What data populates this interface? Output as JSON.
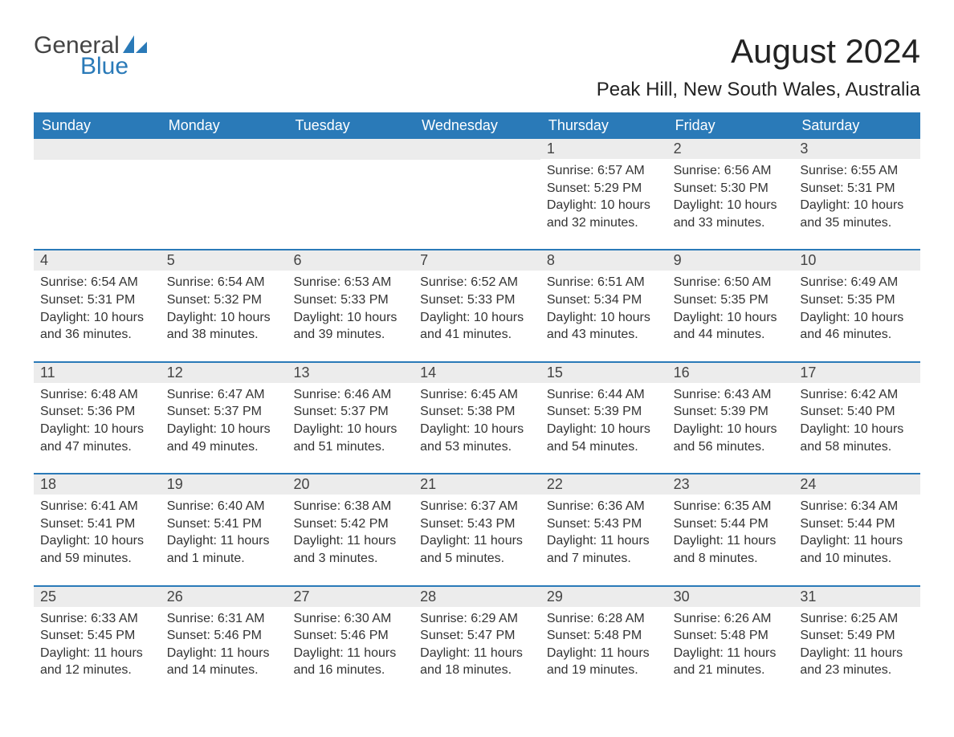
{
  "logo": {
    "text_general": "General",
    "text_blue": "Blue",
    "accent_color": "#2a7ab8"
  },
  "title": "August 2024",
  "location": "Peak Hill, New South Wales, Australia",
  "colors": {
    "header_bg": "#2a7ab8",
    "header_text": "#ffffff",
    "daynum_bg": "#ececec",
    "text": "#333333",
    "border": "#2a7ab8"
  },
  "day_names": [
    "Sunday",
    "Monday",
    "Tuesday",
    "Wednesday",
    "Thursday",
    "Friday",
    "Saturday"
  ],
  "weeks": [
    [
      null,
      null,
      null,
      null,
      {
        "num": "1",
        "sunrise": "Sunrise: 6:57 AM",
        "sunset": "Sunset: 5:29 PM",
        "daylight": "Daylight: 10 hours and 32 minutes."
      },
      {
        "num": "2",
        "sunrise": "Sunrise: 6:56 AM",
        "sunset": "Sunset: 5:30 PM",
        "daylight": "Daylight: 10 hours and 33 minutes."
      },
      {
        "num": "3",
        "sunrise": "Sunrise: 6:55 AM",
        "sunset": "Sunset: 5:31 PM",
        "daylight": "Daylight: 10 hours and 35 minutes."
      }
    ],
    [
      {
        "num": "4",
        "sunrise": "Sunrise: 6:54 AM",
        "sunset": "Sunset: 5:31 PM",
        "daylight": "Daylight: 10 hours and 36 minutes."
      },
      {
        "num": "5",
        "sunrise": "Sunrise: 6:54 AM",
        "sunset": "Sunset: 5:32 PM",
        "daylight": "Daylight: 10 hours and 38 minutes."
      },
      {
        "num": "6",
        "sunrise": "Sunrise: 6:53 AM",
        "sunset": "Sunset: 5:33 PM",
        "daylight": "Daylight: 10 hours and 39 minutes."
      },
      {
        "num": "7",
        "sunrise": "Sunrise: 6:52 AM",
        "sunset": "Sunset: 5:33 PM",
        "daylight": "Daylight: 10 hours and 41 minutes."
      },
      {
        "num": "8",
        "sunrise": "Sunrise: 6:51 AM",
        "sunset": "Sunset: 5:34 PM",
        "daylight": "Daylight: 10 hours and 43 minutes."
      },
      {
        "num": "9",
        "sunrise": "Sunrise: 6:50 AM",
        "sunset": "Sunset: 5:35 PM",
        "daylight": "Daylight: 10 hours and 44 minutes."
      },
      {
        "num": "10",
        "sunrise": "Sunrise: 6:49 AM",
        "sunset": "Sunset: 5:35 PM",
        "daylight": "Daylight: 10 hours and 46 minutes."
      }
    ],
    [
      {
        "num": "11",
        "sunrise": "Sunrise: 6:48 AM",
        "sunset": "Sunset: 5:36 PM",
        "daylight": "Daylight: 10 hours and 47 minutes."
      },
      {
        "num": "12",
        "sunrise": "Sunrise: 6:47 AM",
        "sunset": "Sunset: 5:37 PM",
        "daylight": "Daylight: 10 hours and 49 minutes."
      },
      {
        "num": "13",
        "sunrise": "Sunrise: 6:46 AM",
        "sunset": "Sunset: 5:37 PM",
        "daylight": "Daylight: 10 hours and 51 minutes."
      },
      {
        "num": "14",
        "sunrise": "Sunrise: 6:45 AM",
        "sunset": "Sunset: 5:38 PM",
        "daylight": "Daylight: 10 hours and 53 minutes."
      },
      {
        "num": "15",
        "sunrise": "Sunrise: 6:44 AM",
        "sunset": "Sunset: 5:39 PM",
        "daylight": "Daylight: 10 hours and 54 minutes."
      },
      {
        "num": "16",
        "sunrise": "Sunrise: 6:43 AM",
        "sunset": "Sunset: 5:39 PM",
        "daylight": "Daylight: 10 hours and 56 minutes."
      },
      {
        "num": "17",
        "sunrise": "Sunrise: 6:42 AM",
        "sunset": "Sunset: 5:40 PM",
        "daylight": "Daylight: 10 hours and 58 minutes."
      }
    ],
    [
      {
        "num": "18",
        "sunrise": "Sunrise: 6:41 AM",
        "sunset": "Sunset: 5:41 PM",
        "daylight": "Daylight: 10 hours and 59 minutes."
      },
      {
        "num": "19",
        "sunrise": "Sunrise: 6:40 AM",
        "sunset": "Sunset: 5:41 PM",
        "daylight": "Daylight: 11 hours and 1 minute."
      },
      {
        "num": "20",
        "sunrise": "Sunrise: 6:38 AM",
        "sunset": "Sunset: 5:42 PM",
        "daylight": "Daylight: 11 hours and 3 minutes."
      },
      {
        "num": "21",
        "sunrise": "Sunrise: 6:37 AM",
        "sunset": "Sunset: 5:43 PM",
        "daylight": "Daylight: 11 hours and 5 minutes."
      },
      {
        "num": "22",
        "sunrise": "Sunrise: 6:36 AM",
        "sunset": "Sunset: 5:43 PM",
        "daylight": "Daylight: 11 hours and 7 minutes."
      },
      {
        "num": "23",
        "sunrise": "Sunrise: 6:35 AM",
        "sunset": "Sunset: 5:44 PM",
        "daylight": "Daylight: 11 hours and 8 minutes."
      },
      {
        "num": "24",
        "sunrise": "Sunrise: 6:34 AM",
        "sunset": "Sunset: 5:44 PM",
        "daylight": "Daylight: 11 hours and 10 minutes."
      }
    ],
    [
      {
        "num": "25",
        "sunrise": "Sunrise: 6:33 AM",
        "sunset": "Sunset: 5:45 PM",
        "daylight": "Daylight: 11 hours and 12 minutes."
      },
      {
        "num": "26",
        "sunrise": "Sunrise: 6:31 AM",
        "sunset": "Sunset: 5:46 PM",
        "daylight": "Daylight: 11 hours and 14 minutes."
      },
      {
        "num": "27",
        "sunrise": "Sunrise: 6:30 AM",
        "sunset": "Sunset: 5:46 PM",
        "daylight": "Daylight: 11 hours and 16 minutes."
      },
      {
        "num": "28",
        "sunrise": "Sunrise: 6:29 AM",
        "sunset": "Sunset: 5:47 PM",
        "daylight": "Daylight: 11 hours and 18 minutes."
      },
      {
        "num": "29",
        "sunrise": "Sunrise: 6:28 AM",
        "sunset": "Sunset: 5:48 PM",
        "daylight": "Daylight: 11 hours and 19 minutes."
      },
      {
        "num": "30",
        "sunrise": "Sunrise: 6:26 AM",
        "sunset": "Sunset: 5:48 PM",
        "daylight": "Daylight: 11 hours and 21 minutes."
      },
      {
        "num": "31",
        "sunrise": "Sunrise: 6:25 AM",
        "sunset": "Sunset: 5:49 PM",
        "daylight": "Daylight: 11 hours and 23 minutes."
      }
    ]
  ]
}
